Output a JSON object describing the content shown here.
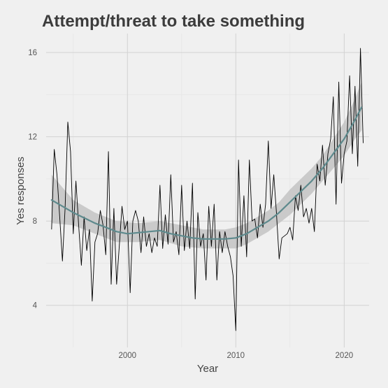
{
  "chart_data": {
    "type": "line",
    "title": "Attempt/threat to take something",
    "xlabel": "Year",
    "ylabel": "Yes responses",
    "xlim": [
      1992.5,
      2022.3
    ],
    "ylim": [
      2.0,
      16.9
    ],
    "x_ticks": [
      2000,
      2010,
      2020
    ],
    "y_ticks": [
      4,
      8,
      12,
      16
    ],
    "grid": true,
    "legend": "none",
    "colors": {
      "background": "#f0f0f0",
      "grid": "#d2d2d2",
      "raw_line": "#000000",
      "smooth_line": "#5e8a8d",
      "band": "#c3c3c3"
    },
    "series": [
      {
        "role": "raw",
        "points": [
          [
            1993.0,
            7.6
          ],
          [
            1993.25,
            11.4
          ],
          [
            1993.5,
            10.2
          ],
          [
            1993.75,
            8.2
          ],
          [
            1994.0,
            6.1
          ],
          [
            1994.25,
            8.6
          ],
          [
            1994.5,
            12.7
          ],
          [
            1994.75,
            11.3
          ],
          [
            1995.0,
            7.4
          ],
          [
            1995.25,
            9.9
          ],
          [
            1995.5,
            7.8
          ],
          [
            1995.75,
            5.9
          ],
          [
            1996.0,
            8.2
          ],
          [
            1996.25,
            6.6
          ],
          [
            1996.5,
            7.6
          ],
          [
            1996.75,
            4.2
          ],
          [
            1997.0,
            7.0
          ],
          [
            1997.25,
            7.4
          ],
          [
            1997.5,
            8.5
          ],
          [
            1997.75,
            7.8
          ],
          [
            1998.0,
            6.4
          ],
          [
            1998.25,
            11.3
          ],
          [
            1998.5,
            5.0
          ],
          [
            1998.75,
            8.6
          ],
          [
            1999.0,
            5.0
          ],
          [
            1999.25,
            6.8
          ],
          [
            1999.5,
            8.7
          ],
          [
            1999.75,
            7.6
          ],
          [
            2000.0,
            8.0
          ],
          [
            2000.25,
            4.6
          ],
          [
            2000.5,
            8.0
          ],
          [
            2000.75,
            8.5
          ],
          [
            2001.0,
            8.0
          ],
          [
            2001.25,
            6.5
          ],
          [
            2001.5,
            8.2
          ],
          [
            2001.75,
            6.8
          ],
          [
            2002.0,
            7.4
          ],
          [
            2002.25,
            6.5
          ],
          [
            2002.5,
            7.2
          ],
          [
            2002.75,
            6.8
          ],
          [
            2003.0,
            9.7
          ],
          [
            2003.25,
            6.7
          ],
          [
            2003.5,
            8.3
          ],
          [
            2003.75,
            6.9
          ],
          [
            2004.0,
            10.2
          ],
          [
            2004.25,
            7.0
          ],
          [
            2004.5,
            7.5
          ],
          [
            2004.75,
            6.4
          ],
          [
            2005.0,
            9.7
          ],
          [
            2005.25,
            6.6
          ],
          [
            2005.5,
            8.0
          ],
          [
            2005.75,
            6.7
          ],
          [
            2006.0,
            9.8
          ],
          [
            2006.25,
            4.3
          ],
          [
            2006.5,
            8.4
          ],
          [
            2006.75,
            6.8
          ],
          [
            2007.0,
            7.4
          ],
          [
            2007.25,
            5.2
          ],
          [
            2007.5,
            8.7
          ],
          [
            2007.75,
            6.8
          ],
          [
            2008.0,
            8.8
          ],
          [
            2008.25,
            5.2
          ],
          [
            2008.5,
            7.5
          ],
          [
            2008.75,
            6.5
          ],
          [
            2009.0,
            7.5
          ],
          [
            2009.25,
            6.8
          ],
          [
            2009.5,
            6.3
          ],
          [
            2009.75,
            5.4
          ],
          [
            2010.0,
            2.8
          ],
          [
            2010.25,
            10.9
          ],
          [
            2010.5,
            6.8
          ],
          [
            2010.75,
            9.2
          ],
          [
            2011.0,
            6.3
          ],
          [
            2011.25,
            10.9
          ],
          [
            2011.5,
            8.0
          ],
          [
            2011.75,
            8.1
          ],
          [
            2012.0,
            7.2
          ],
          [
            2012.25,
            8.8
          ],
          [
            2012.5,
            7.7
          ],
          [
            2012.75,
            8.8
          ],
          [
            2013.0,
            11.8
          ],
          [
            2013.25,
            8.6
          ],
          [
            2013.5,
            10.2
          ],
          [
            2013.75,
            8.4
          ],
          [
            2014.0,
            6.2
          ],
          [
            2014.25,
            7.2
          ],
          [
            2014.5,
            7.3
          ],
          [
            2014.75,
            7.4
          ],
          [
            2015.0,
            7.7
          ],
          [
            2015.25,
            7.1
          ],
          [
            2015.5,
            9.2
          ],
          [
            2015.75,
            8.5
          ],
          [
            2016.0,
            9.7
          ],
          [
            2016.25,
            8.2
          ],
          [
            2016.5,
            8.6
          ],
          [
            2016.75,
            7.9
          ],
          [
            2017.0,
            8.6
          ],
          [
            2017.25,
            7.5
          ],
          [
            2017.5,
            10.7
          ],
          [
            2017.75,
            9.9
          ],
          [
            2018.0,
            11.6
          ],
          [
            2018.25,
            9.7
          ],
          [
            2018.5,
            11.2
          ],
          [
            2018.75,
            11.9
          ],
          [
            2019.0,
            13.9
          ],
          [
            2019.25,
            8.8
          ],
          [
            2019.5,
            14.6
          ],
          [
            2019.75,
            9.8
          ],
          [
            2020.0,
            11.2
          ],
          [
            2020.25,
            11.8
          ],
          [
            2020.5,
            14.9
          ],
          [
            2020.75,
            11.2
          ],
          [
            2021.0,
            14.4
          ],
          [
            2021.25,
            10.6
          ],
          [
            2021.5,
            16.2
          ],
          [
            2021.75,
            11.7
          ]
        ]
      },
      {
        "role": "smooth",
        "points": [
          [
            1993.0,
            9.0
          ],
          [
            1995.0,
            8.4
          ],
          [
            1997.0,
            7.9
          ],
          [
            1998.0,
            7.7
          ],
          [
            1999.0,
            7.5
          ],
          [
            2000.0,
            7.4
          ],
          [
            2001.0,
            7.45
          ],
          [
            2002.0,
            7.5
          ],
          [
            2003.0,
            7.55
          ],
          [
            2004.0,
            7.4
          ],
          [
            2005.0,
            7.3
          ],
          [
            2006.0,
            7.2
          ],
          [
            2007.0,
            7.15
          ],
          [
            2008.0,
            7.15
          ],
          [
            2009.0,
            7.15
          ],
          [
            2010.0,
            7.2
          ],
          [
            2011.0,
            7.4
          ],
          [
            2012.0,
            7.7
          ],
          [
            2013.0,
            8.0
          ],
          [
            2014.0,
            8.4
          ],
          [
            2015.0,
            8.9
          ],
          [
            2016.0,
            9.4
          ],
          [
            2017.0,
            9.9
          ],
          [
            2018.0,
            10.5
          ],
          [
            2019.0,
            11.2
          ],
          [
            2020.0,
            11.9
          ],
          [
            2021.0,
            12.8
          ],
          [
            2021.6,
            13.4
          ]
        ]
      },
      {
        "role": "confidence_band",
        "upper": [
          [
            1993.0,
            10.2
          ],
          [
            1995.0,
            9.0
          ],
          [
            1997.0,
            8.4
          ],
          [
            1999.0,
            8.0
          ],
          [
            2001.0,
            7.9
          ],
          [
            2003.0,
            8.0
          ],
          [
            2005.0,
            7.8
          ],
          [
            2007.0,
            7.6
          ],
          [
            2009.0,
            7.6
          ],
          [
            2010.0,
            7.7
          ],
          [
            2011.0,
            7.9
          ],
          [
            2012.0,
            8.2
          ],
          [
            2013.0,
            8.5
          ],
          [
            2014.0,
            8.9
          ],
          [
            2015.0,
            9.5
          ],
          [
            2016.0,
            10.0
          ],
          [
            2017.0,
            10.5
          ],
          [
            2018.0,
            11.1
          ],
          [
            2019.0,
            11.9
          ],
          [
            2020.0,
            12.7
          ],
          [
            2021.0,
            13.8
          ],
          [
            2021.6,
            14.6
          ]
        ],
        "lower": [
          [
            1993.0,
            7.9
          ],
          [
            1995.0,
            7.8
          ],
          [
            1997.0,
            7.4
          ],
          [
            1999.0,
            7.0
          ],
          [
            2001.0,
            7.0
          ],
          [
            2003.0,
            7.1
          ],
          [
            2005.0,
            6.8
          ],
          [
            2007.0,
            6.7
          ],
          [
            2009.0,
            6.7
          ],
          [
            2010.0,
            6.7
          ],
          [
            2011.0,
            6.9
          ],
          [
            2012.0,
            7.2
          ],
          [
            2013.0,
            7.5
          ],
          [
            2014.0,
            7.9
          ],
          [
            2015.0,
            8.3
          ],
          [
            2016.0,
            8.8
          ],
          [
            2017.0,
            9.3
          ],
          [
            2018.0,
            9.9
          ],
          [
            2019.0,
            10.5
          ],
          [
            2020.0,
            11.1
          ],
          [
            2021.0,
            11.9
          ],
          [
            2021.6,
            12.3
          ]
        ]
      }
    ]
  }
}
